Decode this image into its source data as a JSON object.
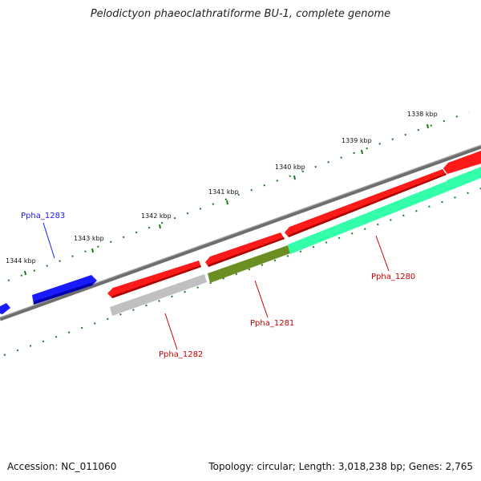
{
  "title": "Pelodictyon phaeoclathratiforme BU-1, complete genome",
  "footer": {
    "accession": "Accession: NC_011060",
    "summary": "Topology: circular; Length: 3,018,238 bp; Genes: 2,765"
  },
  "ticks": [
    "1338 kbp",
    "1339 kbp",
    "1340 kbp",
    "1341 kbp",
    "1342 kbp",
    "1343 kbp",
    "1344 kbp"
  ],
  "genes": [
    {
      "name": "Ppha_1283",
      "color": "#1a1aff"
    },
    {
      "name": "Ppha_1282",
      "color": "#ff0000"
    },
    {
      "name": "Ppha_1281",
      "color": "#ff0000"
    },
    {
      "name": "Ppha_1280",
      "color": "#ff0000"
    }
  ],
  "colors": {
    "backbone": "#808080",
    "forward_genes": "#1a1aff",
    "reverse_genes": "#ff1a1a",
    "cds_grey": "#c0c0c0",
    "cds_olive": "#6b8e23",
    "cds_teal": "#33ffaa",
    "tick_marks": "#1a7a1a"
  }
}
